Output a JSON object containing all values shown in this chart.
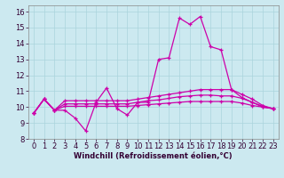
{
  "xlabel": "Windchill (Refroidissement éolien,°C)",
  "xlim": [
    -0.5,
    23.5
  ],
  "ylim": [
    8,
    16.4
  ],
  "yticks": [
    8,
    9,
    10,
    11,
    12,
    13,
    14,
    15,
    16
  ],
  "xticks": [
    0,
    1,
    2,
    3,
    4,
    5,
    6,
    7,
    8,
    9,
    10,
    11,
    12,
    13,
    14,
    15,
    16,
    17,
    18,
    19,
    20,
    21,
    22,
    23
  ],
  "background_color": "#cce9f0",
  "grid_color": "#aad4dc",
  "line_color": "#cc00aa",
  "series": [
    [
      9.6,
      10.5,
      9.8,
      9.8,
      9.3,
      8.5,
      10.3,
      11.2,
      9.9,
      9.5,
      10.3,
      10.3,
      13.0,
      13.1,
      15.6,
      15.2,
      15.7,
      13.8,
      13.6,
      11.1,
      10.6,
      10.3,
      10.0,
      9.9
    ],
    [
      9.6,
      10.5,
      9.8,
      10.4,
      10.4,
      10.4,
      10.4,
      10.4,
      10.4,
      10.4,
      10.5,
      10.6,
      10.7,
      10.8,
      10.9,
      11.0,
      11.1,
      11.1,
      11.1,
      11.1,
      10.8,
      10.5,
      10.1,
      9.9
    ],
    [
      9.6,
      10.5,
      9.8,
      10.05,
      10.05,
      10.05,
      10.05,
      10.05,
      10.05,
      10.05,
      10.1,
      10.15,
      10.2,
      10.25,
      10.3,
      10.35,
      10.35,
      10.35,
      10.35,
      10.35,
      10.25,
      10.1,
      10.0,
      9.9
    ],
    [
      9.6,
      10.5,
      9.8,
      10.2,
      10.2,
      10.2,
      10.2,
      10.2,
      10.2,
      10.2,
      10.3,
      10.4,
      10.45,
      10.55,
      10.65,
      10.7,
      10.75,
      10.75,
      10.7,
      10.7,
      10.55,
      10.3,
      10.05,
      9.9
    ]
  ],
  "tick_fontsize": 6,
  "xlabel_fontsize": 6,
  "xlabel_fontweight": "bold"
}
